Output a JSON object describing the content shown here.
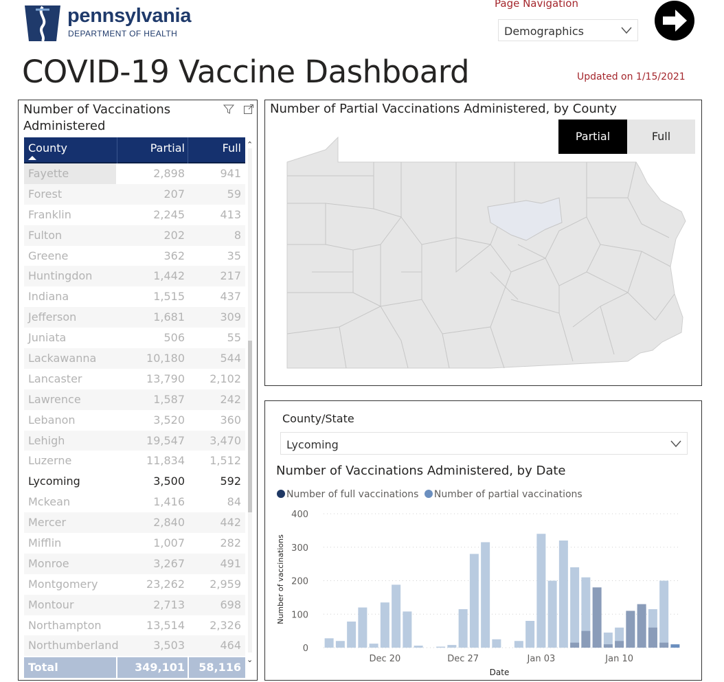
{
  "header": {
    "logo_name": "pennsylvania",
    "logo_sub": "DEPARTMENT OF HEALTH",
    "page_nav_label": "Page Navigation",
    "page_nav_value": "Demographics",
    "title": "COVID-19 Vaccine Dashboard",
    "updated": "Updated on 1/15/2021"
  },
  "table": {
    "title": "Number of Vaccinations Administered",
    "columns": [
      "County",
      "Partial",
      "Full"
    ],
    "rows": [
      {
        "county": "Fayette",
        "partial": "2,898",
        "full": "941"
      },
      {
        "county": "Forest",
        "partial": "207",
        "full": "59"
      },
      {
        "county": "Franklin",
        "partial": "2,245",
        "full": "413"
      },
      {
        "county": "Fulton",
        "partial": "202",
        "full": "8"
      },
      {
        "county": "Greene",
        "partial": "362",
        "full": "35"
      },
      {
        "county": "Huntingdon",
        "partial": "1,442",
        "full": "217"
      },
      {
        "county": "Indiana",
        "partial": "1,515",
        "full": "437"
      },
      {
        "county": "Jefferson",
        "partial": "1,681",
        "full": "309"
      },
      {
        "county": "Juniata",
        "partial": "506",
        "full": "55"
      },
      {
        "county": "Lackawanna",
        "partial": "10,180",
        "full": "544"
      },
      {
        "county": "Lancaster",
        "partial": "13,790",
        "full": "2,102"
      },
      {
        "county": "Lawrence",
        "partial": "1,587",
        "full": "242"
      },
      {
        "county": "Lebanon",
        "partial": "3,520",
        "full": "360"
      },
      {
        "county": "Lehigh",
        "partial": "19,547",
        "full": "3,470"
      },
      {
        "county": "Luzerne",
        "partial": "11,834",
        "full": "1,512"
      },
      {
        "county": "Lycoming",
        "partial": "3,500",
        "full": "592"
      },
      {
        "county": "Mckean",
        "partial": "1,416",
        "full": "84"
      },
      {
        "county": "Mercer",
        "partial": "2,840",
        "full": "442"
      },
      {
        "county": "Mifflin",
        "partial": "1,007",
        "full": "282"
      },
      {
        "county": "Monroe",
        "partial": "3,267",
        "full": "491"
      },
      {
        "county": "Montgomery",
        "partial": "23,262",
        "full": "2,959"
      },
      {
        "county": "Montour",
        "partial": "2,713",
        "full": "698"
      },
      {
        "county": "Northampton",
        "partial": "13,514",
        "full": "2,326"
      },
      {
        "county": "Northumberland",
        "partial": "3,503",
        "full": "464"
      }
    ],
    "selected_county": "Lycoming",
    "total": {
      "label": "Total",
      "partial": "349,101",
      "full": "58,116"
    }
  },
  "map": {
    "title": "Number of Partial Vaccinations Administered, by County",
    "toggle_partial": "Partial",
    "toggle_full": "Full",
    "active_toggle": "Partial"
  },
  "slicer": {
    "label": "County/State",
    "value": "Lycoming"
  },
  "chart_data": {
    "type": "bar",
    "title": "Number of Vaccinations Administered, by Date",
    "xlabel": "Date",
    "ylabel": "Number of vaccinations",
    "ylim": [
      0,
      400
    ],
    "yticks": [
      0,
      100,
      200,
      300,
      400
    ],
    "x_tick_labels": [
      "Dec 20",
      "Dec 27",
      "Jan 03",
      "Jan 10"
    ],
    "x_tick_dates": [
      "2020-12-20",
      "2020-12-27",
      "2021-01-03",
      "2021-01-10"
    ],
    "dates": [
      "2020-12-15",
      "2020-12-16",
      "2020-12-17",
      "2020-12-18",
      "2020-12-19",
      "2020-12-20",
      "2020-12-21",
      "2020-12-22",
      "2020-12-23",
      "2020-12-24",
      "2020-12-25",
      "2020-12-26",
      "2020-12-27",
      "2020-12-28",
      "2020-12-29",
      "2020-12-30",
      "2020-12-31",
      "2021-01-01",
      "2021-01-02",
      "2021-01-03",
      "2021-01-04",
      "2021-01-05",
      "2021-01-06",
      "2021-01-07",
      "2021-01-08",
      "2021-01-09",
      "2021-01-10",
      "2021-01-11",
      "2021-01-12",
      "2021-01-13",
      "2021-01-14",
      "2021-01-15"
    ],
    "series": [
      {
        "name": "Number of full vaccinations",
        "color": "#1f3864",
        "values": [
          0,
          0,
          0,
          0,
          0,
          0,
          0,
          0,
          0,
          0,
          0,
          0,
          0,
          0,
          0,
          0,
          0,
          0,
          0,
          0,
          0,
          0,
          15,
          50,
          180,
          10,
          20,
          110,
          130,
          60,
          15,
          10
        ]
      },
      {
        "name": "Number of partial vaccinations",
        "color": "#6b8fbf",
        "values": [
          28,
          20,
          78,
          120,
          12,
          135,
          188,
          108,
          6,
          0,
          3,
          8,
          115,
          280,
          315,
          25,
          0,
          20,
          80,
          340,
          200,
          320,
          240,
          210,
          12,
          45,
          60,
          105,
          120,
          115,
          200,
          0
        ]
      }
    ],
    "grid": true,
    "legend_position": "top-left"
  },
  "colors": {
    "header_blue": "#15316e",
    "accent_red": "#a4262c",
    "map_fill": "#e6e6e6",
    "map_selected": "#e5e8ef",
    "bar_partial": "#b9cbe0",
    "bar_full": "#8a9cb9"
  },
  "icons": {
    "nav_arrow": "arrow-right-circle-icon",
    "filter": "filter-icon",
    "expand": "focus-mode-icon",
    "chevron": "chevron-down-icon"
  }
}
